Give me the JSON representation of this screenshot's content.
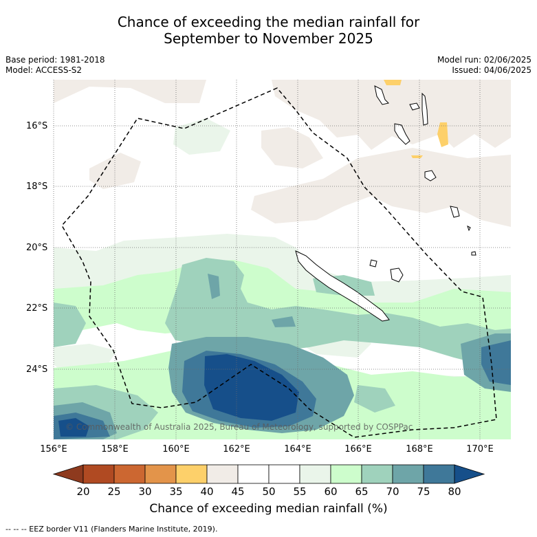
{
  "title_line1": "Chance of exceeding the median rainfall for",
  "title_line2": "September to November 2025",
  "base_period": "Base period: 1981-2018",
  "model": "Model: ACCESS-S2",
  "model_run": "Model run: 02/06/2025",
  "issued": "Issued: 04/06/2025",
  "lat_labels": [
    "16°S",
    "18°S",
    "20°S",
    "22°S",
    "24°S"
  ],
  "lon_labels": [
    "156°E",
    "158°E",
    "160°E",
    "162°E",
    "164°E",
    "166°E",
    "168°E",
    "170°E"
  ],
  "copyright": "© Commonwealth of Australia 2025, Bureau of Meteorology, supported by COSPPac",
  "colorbar": {
    "ticks": [
      "20",
      "25",
      "30",
      "35",
      "40",
      "45",
      "50",
      "55",
      "60",
      "65",
      "70",
      "75",
      "80"
    ],
    "colors": [
      "#8e3a1e",
      "#b04a22",
      "#cc6731",
      "#e3944a",
      "#fdd06a",
      "#f1ece7",
      "#ffffff",
      "#ffffff",
      "#eaf5ea",
      "#cdfdcc",
      "#9fd2bc",
      "#6ea5a8",
      "#3f7899",
      "#164f8a"
    ],
    "label": "Chance of exceeding median rainfall (%)"
  },
  "footnote": "--  --  -- EEZ border V11 (Flanders Marine Institute, 2019)."
}
